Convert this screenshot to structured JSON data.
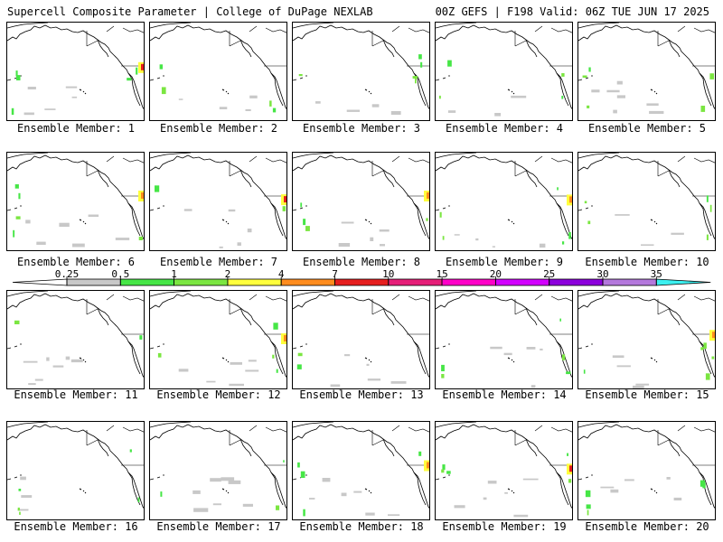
{
  "header": {
    "left": "Supercell Composite Parameter | College of DuPage NEXLAB",
    "right": "00Z GEFS | F198 Valid: 06Z TUE JUN 17 2025"
  },
  "member_label": "Ensemble Member:",
  "members": [
    {
      "number": "1"
    },
    {
      "number": "2"
    },
    {
      "number": "3"
    },
    {
      "number": "4"
    },
    {
      "number": "5"
    },
    {
      "number": "6"
    },
    {
      "number": "7"
    },
    {
      "number": "8"
    },
    {
      "number": "9"
    },
    {
      "number": "10"
    },
    {
      "number": "11"
    },
    {
      "number": "12"
    },
    {
      "number": "13"
    },
    {
      "number": "14"
    },
    {
      "number": "15"
    },
    {
      "number": "16"
    },
    {
      "number": "17"
    },
    {
      "number": "18"
    },
    {
      "number": "19"
    },
    {
      "number": "20"
    }
  ],
  "scale": {
    "ticks": [
      "0.25",
      "0.5",
      "1",
      "2",
      "4",
      "7",
      "10",
      "15",
      "20",
      "25",
      "30",
      "35"
    ],
    "colors": [
      "#c8c8c8",
      "#46e646",
      "#7be641",
      "#ffff3c",
      "#ff8c1e",
      "#e61e1e",
      "#e61e78",
      "#ff00c8",
      "#d200ff",
      "#8c00dc",
      "#b478dc",
      "#3cf0f0"
    ]
  },
  "map_colors": {
    "outline": "#000000",
    "faint": "#c8c8c8",
    "light_green": "#46e646",
    "green": "#7be641",
    "yellow": "#ffff3c",
    "orange": "#ff8c1e",
    "red": "#e61e1e"
  }
}
